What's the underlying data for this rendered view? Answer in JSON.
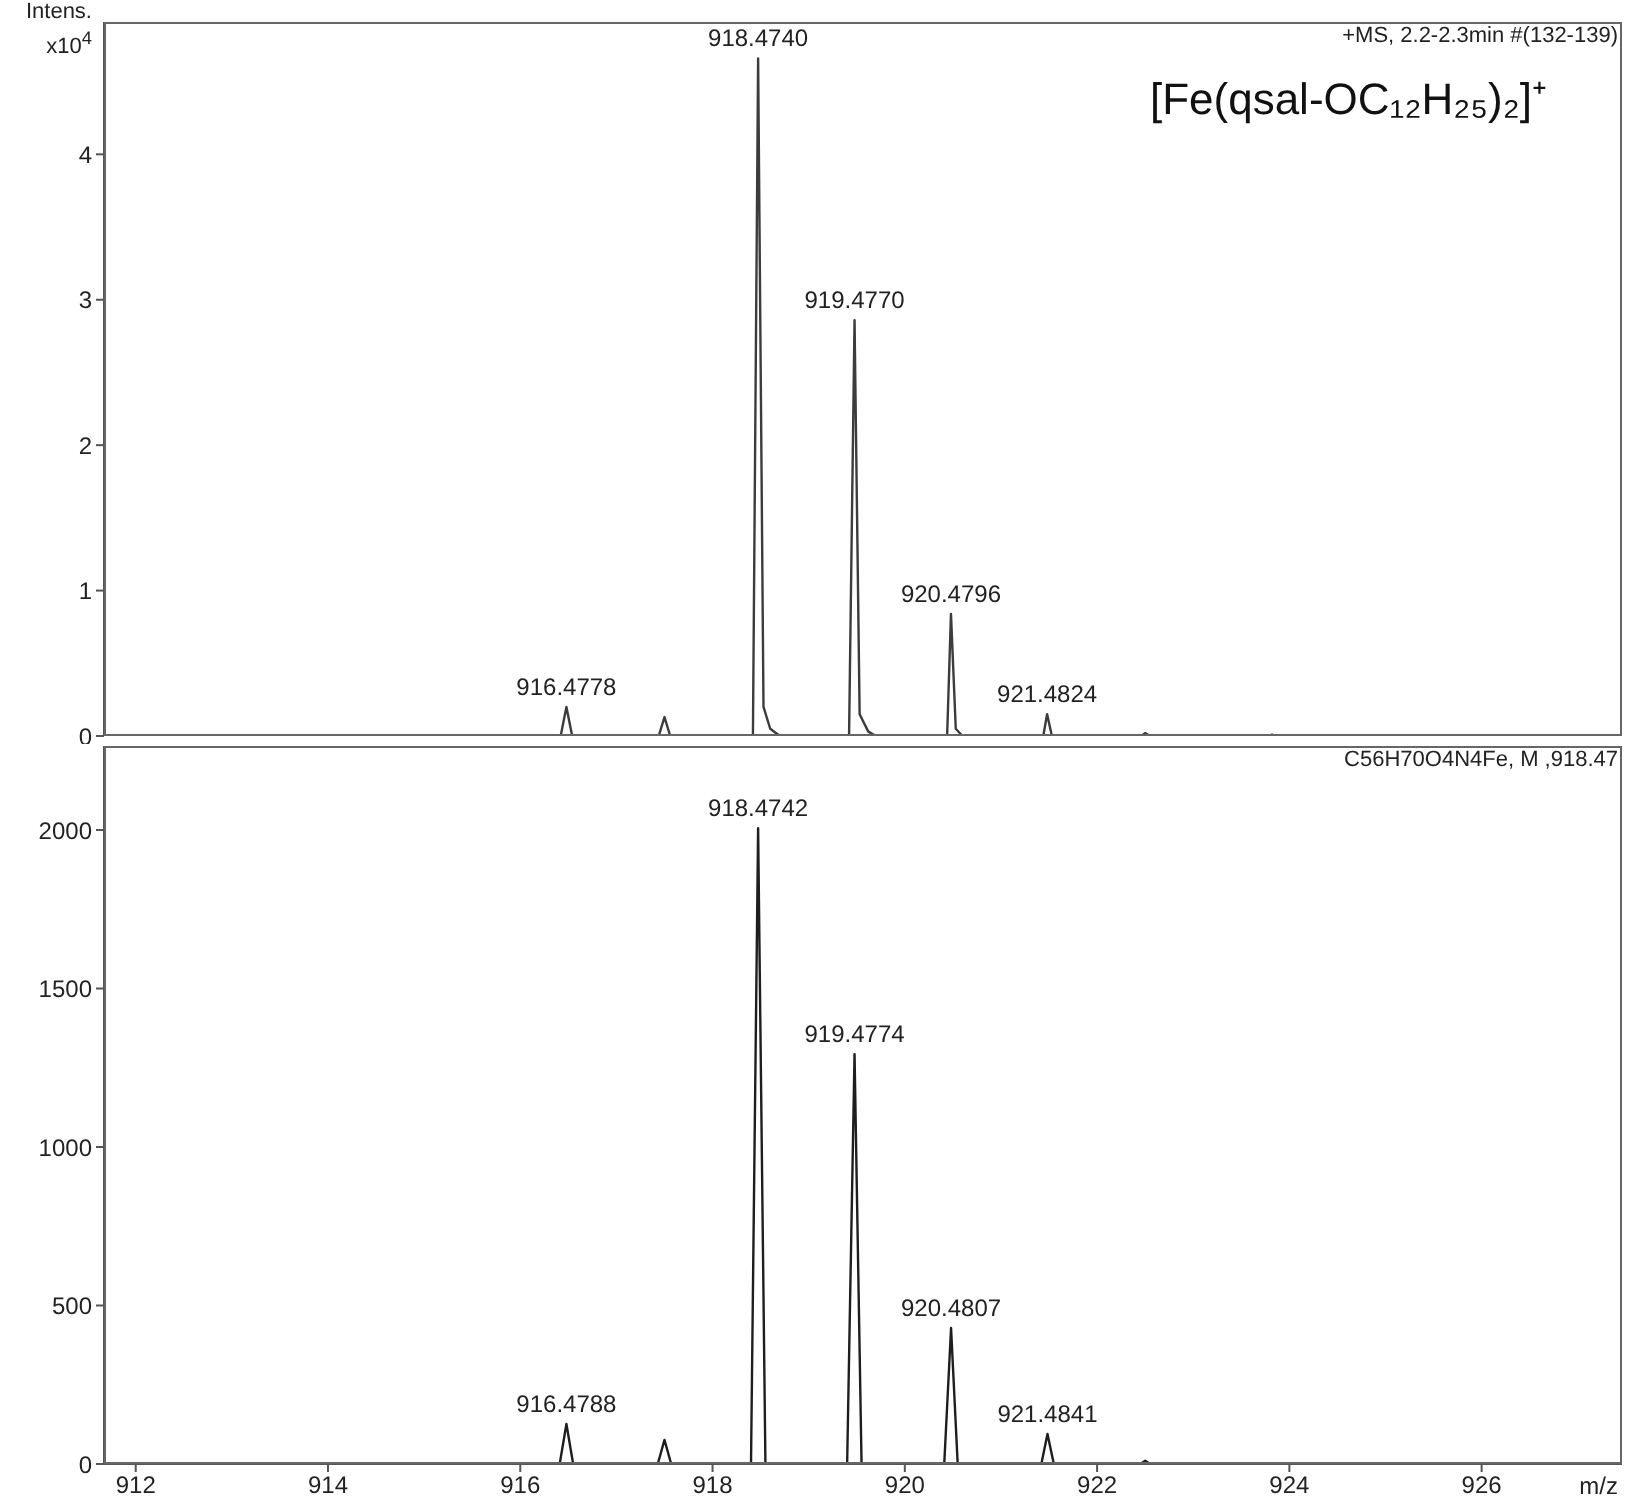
{
  "chart_data": [
    {
      "type": "line",
      "ylabel": "Intens. x10$^{4}$",
      "xlim": [
        911.67,
        927.46
      ],
      "xticks": [
        912,
        914,
        916,
        918,
        920,
        922,
        924,
        926
      ],
      "ylim": [
        0,
        4.91
      ],
      "yticks": [
        0,
        1,
        2,
        3,
        4
      ],
      "tick_labels": "y",
      "marker": "none",
      "line_style": "solid",
      "x": [
        911.67,
        916.42,
        916.48,
        916.54,
        917.44,
        917.5,
        917.56,
        918.42,
        918.474,
        918.53,
        918.6,
        918.7,
        919.42,
        919.477,
        919.53,
        919.62,
        919.7,
        920.44,
        920.48,
        920.53,
        920.6,
        921.44,
        921.48,
        921.53,
        922.46,
        922.5,
        922.55,
        923.78,
        923.82,
        923.86,
        927.46
      ],
      "series": [
        {
          "color": "#3c3c3c",
          "values": [
            0,
            0,
            0.2,
            0,
            0,
            0.13,
            0,
            0,
            4.66,
            0.2,
            0.05,
            0,
            0,
            2.86,
            0.15,
            0.03,
            0,
            0,
            0.84,
            0.05,
            0,
            0,
            0.15,
            0,
            0,
            0.02,
            0,
            0,
            0.01,
            0,
            0
          ]
        }
      ],
      "annotations": [
        {
          "text": "916.4778",
          "x": 916.48,
          "y": 0.2
        },
        {
          "text": "918.4740",
          "x": 918.474,
          "y": 4.66
        },
        {
          "text": "919.4770",
          "x": 919.477,
          "y": 2.86
        },
        {
          "text": "920.4796",
          "x": 920.48,
          "y": 0.84
        },
        {
          "text": "921.4824",
          "x": 921.48,
          "y": 0.15
        },
        "+MS, 2.2-2.3min #(132-139)",
        "[Fe(qsal-OC₁₂H₂₅)₂]⁺"
      ]
    },
    {
      "type": "line",
      "xlabel": "m/z",
      "xlim": [
        911.67,
        927.46
      ],
      "xticks": [
        912,
        914,
        916,
        918,
        920,
        922,
        924,
        926
      ],
      "ylim": [
        0,
        2265
      ],
      "yticks": [
        0,
        500,
        1000,
        1500,
        2000
      ],
      "marker": "none",
      "line_style": "solid",
      "x": [
        911.67,
        916.41,
        916.48,
        916.55,
        917.43,
        917.5,
        917.57,
        918.4,
        918.474,
        918.55,
        919.4,
        919.477,
        919.55,
        920.41,
        920.481,
        920.55,
        921.42,
        921.484,
        921.55,
        922.45,
        922.5,
        922.55,
        927.46
      ],
      "series": [
        {
          "color": "#1e1e1e",
          "values": [
            0,
            0,
            126,
            0,
            0,
            76,
            0,
            0,
            2006,
            0,
            0,
            1293,
            0,
            0,
            429,
            0,
            0,
            95,
            0,
            0,
            10,
            0,
            0
          ]
        }
      ],
      "annotations": [
        {
          "text": "916.4788",
          "x": 916.48,
          "y": 126
        },
        {
          "text": "918.4742",
          "x": 918.474,
          "y": 2006
        },
        {
          "text": "919.4774",
          "x": 919.477,
          "y": 1293
        },
        {
          "text": "920.4807",
          "x": 920.481,
          "y": 429
        },
        {
          "text": "921.4841",
          "x": 921.484,
          "y": 95
        },
        "C56H70O4N4Fe, M ,918.47"
      ]
    }
  ]
}
